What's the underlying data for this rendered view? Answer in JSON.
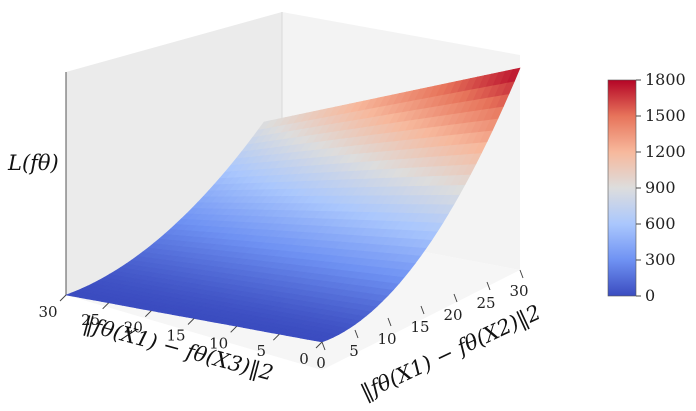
{
  "chart_data": {
    "type": "surface3d",
    "title": "",
    "xlabel": "‖fθ(X1) − fθ(X2)‖2",
    "ylabel": "‖fθ(X1) − fθ(X3)‖2",
    "zlabel": "L(fθ)",
    "x_ticks": [
      "0",
      "5",
      "10",
      "15",
      "20",
      "25",
      "30"
    ],
    "y_ticks": [
      "0",
      "5",
      "10",
      "15",
      "20",
      "25",
      "30"
    ],
    "xlim": [
      0,
      30
    ],
    "ylim": [
      0,
      30
    ],
    "zlim": [
      0,
      1800
    ],
    "surface_corners": [
      {
        "x": 0,
        "y": 0,
        "z": 0
      },
      {
        "x": 30,
        "y": 0,
        "z": 1800
      },
      {
        "x": 0,
        "y": 30,
        "z": 0
      },
      {
        "x": 30,
        "y": 30,
        "z": 900
      }
    ],
    "colormap": [
      "#3b4cc0",
      "#6f92f3",
      "#aac7fd",
      "#dddddd",
      "#f7b89c",
      "#e7745b",
      "#b40426"
    ],
    "colorbar": {
      "ticks": [
        "0",
        "300",
        "600",
        "900",
        "1200",
        "1500",
        "1800"
      ],
      "min": 0,
      "max": 1800
    },
    "grid": false
  }
}
